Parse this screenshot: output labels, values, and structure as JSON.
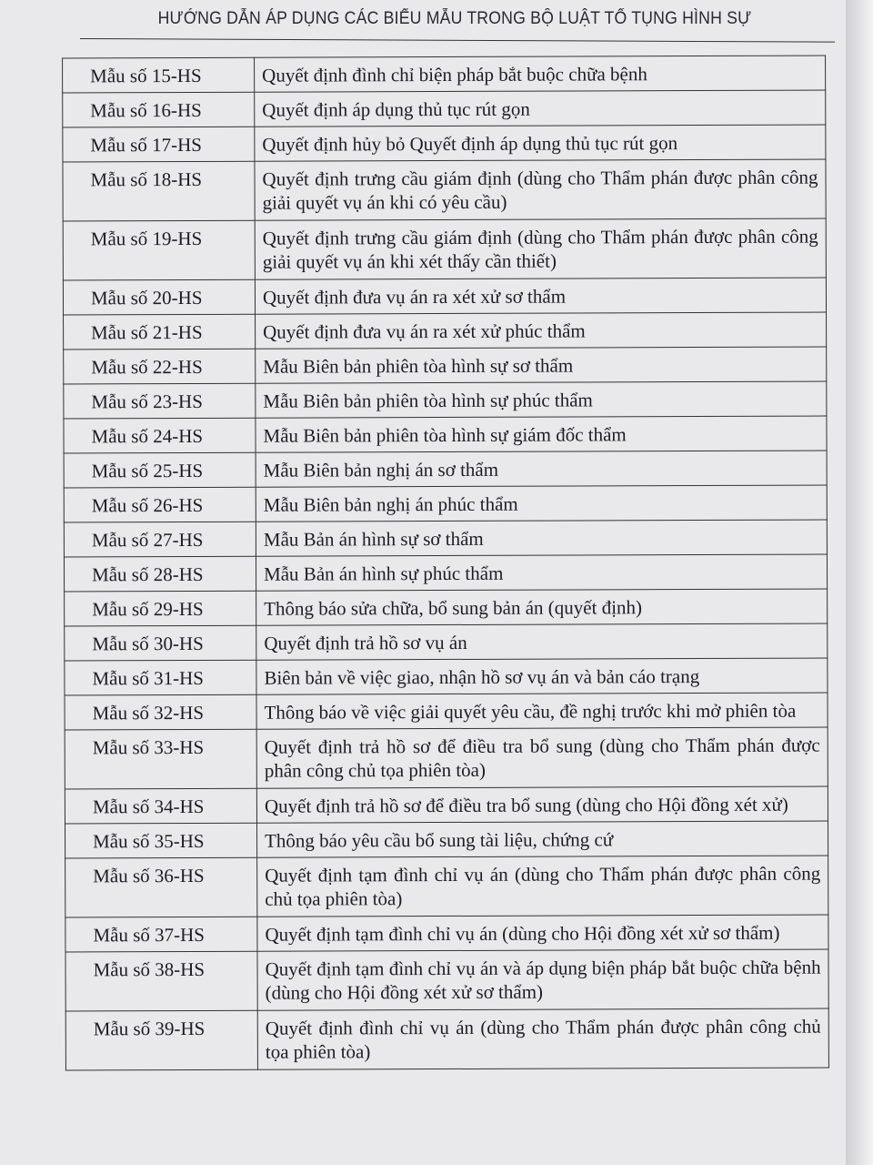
{
  "header": {
    "title": "HƯỚNG DẪN ÁP DỤNG CÁC BIỂU MẪU TRONG BỘ LUẬT TỐ TỤNG HÌNH SỰ"
  },
  "table": {
    "rows": [
      {
        "code": "Mẫu số 15-HS",
        "desc": "Quyết định đình chỉ biện pháp bắt buộc chữa bệnh"
      },
      {
        "code": "Mẫu số 16-HS",
        "desc": "Quyết định áp dụng thủ tục rút gọn"
      },
      {
        "code": "Mẫu số 17-HS",
        "desc": "Quyết định hủy bỏ Quyết định áp dụng thủ tục rút gọn"
      },
      {
        "code": "Mẫu số 18-HS",
        "desc": "Quyết định trưng cầu giám định (dùng cho Thẩm phán được phân công giải quyết vụ án khi có yêu cầu)"
      },
      {
        "code": "Mẫu số 19-HS",
        "desc": "Quyết định trưng cầu giám định (dùng cho Thẩm phán được phân công giải quyết vụ án khi xét thấy cần thiết)"
      },
      {
        "code": "Mẫu số 20-HS",
        "desc": "Quyết định đưa vụ án ra xét xử sơ thẩm"
      },
      {
        "code": "Mẫu số 21-HS",
        "desc": "Quyết định đưa vụ án ra xét xử phúc thẩm"
      },
      {
        "code": "Mẫu số 22-HS",
        "desc": "Mẫu Biên bản phiên tòa hình sự sơ thẩm"
      },
      {
        "code": "Mẫu số 23-HS",
        "desc": "Mẫu Biên bản phiên tòa hình sự phúc thẩm"
      },
      {
        "code": "Mẫu số 24-HS",
        "desc": "Mẫu Biên bản phiên tòa hình sự giám đốc thẩm"
      },
      {
        "code": "Mẫu số 25-HS",
        "desc": "Mẫu Biên bản nghị án sơ thẩm"
      },
      {
        "code": "Mẫu số 26-HS",
        "desc": "Mẫu Biên bản nghị án phúc thẩm"
      },
      {
        "code": "Mẫu số 27-HS",
        "desc": "Mẫu Bản án hình sự sơ thẩm"
      },
      {
        "code": "Mẫu số 28-HS",
        "desc": "Mẫu Bản án hình sự phúc thẩm"
      },
      {
        "code": "Mẫu số 29-HS",
        "desc": "Thông báo sửa chữa, bổ sung bản án (quyết định)"
      },
      {
        "code": "Mẫu số 30-HS",
        "desc": "Quyết định trả hồ sơ vụ án"
      },
      {
        "code": "Mẫu số 31-HS",
        "desc": "Biên bản về việc giao, nhận hồ sơ vụ án và bản cáo trạng"
      },
      {
        "code": "Mẫu số 32-HS",
        "desc": "Thông báo về việc giải quyết yêu cầu, đề nghị trước khi mở phiên tòa"
      },
      {
        "code": "Mẫu số 33-HS",
        "desc": "Quyết định trả hồ sơ để điều tra bổ sung (dùng cho Thẩm phán được phân công chủ tọa phiên tòa)"
      },
      {
        "code": "Mẫu số 34-HS",
        "desc": "Quyết định trả hồ sơ để điều tra bổ sung (dùng cho Hội đồng xét xử)"
      },
      {
        "code": "Mẫu số 35-HS",
        "desc": "Thông báo yêu cầu bổ sung tài liệu, chứng cứ"
      },
      {
        "code": "Mẫu số 36-HS",
        "desc": "Quyết định tạm đình chỉ vụ án (dùng cho Thẩm phán được phân công chủ tọa phiên tòa)"
      },
      {
        "code": "Mẫu số 37-HS",
        "desc": "Quyết định tạm đình chỉ vụ án (dùng cho Hội đồng xét xử sơ thẩm)"
      },
      {
        "code": "Mẫu số 38-HS",
        "desc": "Quyết định tạm đình chỉ vụ án và áp dụng biện pháp bắt buộc chữa bệnh (dùng cho Hội đồng xét xử sơ thẩm)"
      },
      {
        "code": "Mẫu số 39-HS",
        "desc": "Quyết định đình chỉ vụ án (dùng cho Thẩm phán được phân công chủ tọa phiên tòa)"
      }
    ]
  }
}
